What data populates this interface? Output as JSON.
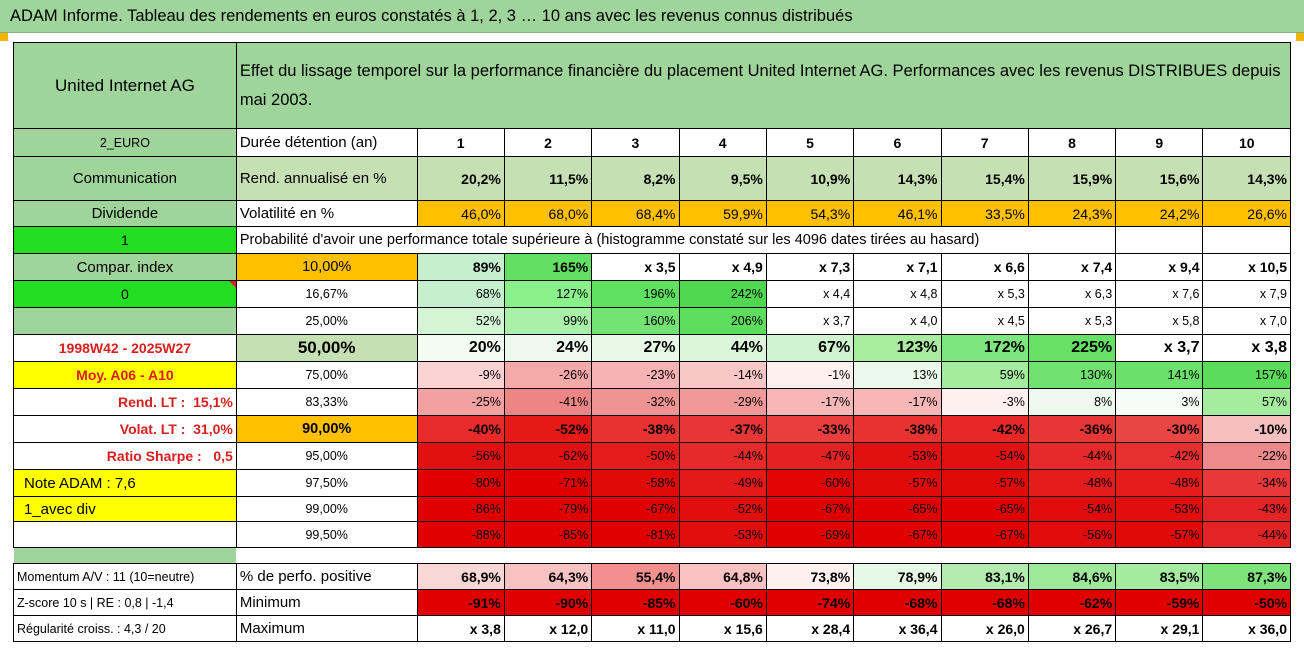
{
  "title": "ADAM Informe. Tableau des rendements en euros constatés à 1, 2, 3 … 10 ans avec les revenus connus distribués",
  "company": "United Internet AG",
  "description": "Effet du lissage temporel sur la performance financière du placement United Internet AG. Performances avec les revenus DISTRIBUES depuis mai 2003.",
  "years_label": "Durée détention (an)",
  "years": [
    "1",
    "2",
    "3",
    "4",
    "5",
    "6",
    "7",
    "8",
    "9",
    "10"
  ],
  "left_labels": {
    "currency": "2_EURO",
    "sector": "Communication",
    "dividend": "Dividende",
    "one": "1",
    "compar_index": "Compar. index",
    "zero": "0",
    "period": "1998W42 - 2025W27",
    "moy": "Moy. A06 - A10",
    "rend_lt": "Rend. LT :",
    "rend_lt_val": "15,1%",
    "volat_lt": "Volat. LT :",
    "volat_lt_val": "31,0%",
    "sharpe": "Ratio Sharpe :",
    "sharpe_val": "0,5",
    "note": "Note ADAM : 7,6",
    "avec_div": "1_avec div"
  },
  "rend": {
    "label": "Rend. annualisé en %",
    "values": [
      "20,2%",
      "11,5%",
      "8,2%",
      "9,5%",
      "10,9%",
      "14,3%",
      "15,4%",
      "15,9%",
      "15,6%",
      "14,3%"
    ]
  },
  "vol": {
    "label": "Volatilité en %",
    "values": [
      "46,0%",
      "68,0%",
      "68,4%",
      "59,9%",
      "54,3%",
      "46,1%",
      "33,5%",
      "24,3%",
      "24,2%",
      "26,6%"
    ]
  },
  "proba_title": "Probabilité d'avoir une performance totale supérieure à (histogramme constaté sur les 4096 dates tirées au hasard)",
  "proba_rows": [
    {
      "pct": "10,00%",
      "values": [
        "89%",
        "165%",
        "x 3,5",
        "x 4,9",
        "x 7,3",
        "x 7,1",
        "x 6,6",
        "x 7,4",
        "x 9,4",
        "x 10,5"
      ]
    },
    {
      "pct": "16,67%",
      "values": [
        "68%",
        "127%",
        "196%",
        "242%",
        "x 4,4",
        "x 4,8",
        "x 5,3",
        "x 6,3",
        "x 7,6",
        "x 7,9"
      ]
    },
    {
      "pct": "25,00%",
      "values": [
        "52%",
        "99%",
        "160%",
        "206%",
        "x 3,7",
        "x 4,0",
        "x 4,5",
        "x 5,3",
        "x 5,8",
        "x 7,0"
      ]
    },
    {
      "pct": "50,00%",
      "values": [
        "20%",
        "24%",
        "27%",
        "44%",
        "67%",
        "123%",
        "172%",
        "225%",
        "x 3,7",
        "x 3,8"
      ]
    },
    {
      "pct": "75,00%",
      "values": [
        "-9%",
        "-26%",
        "-23%",
        "-14%",
        "-1%",
        "13%",
        "59%",
        "130%",
        "141%",
        "157%"
      ]
    },
    {
      "pct": "83,33%",
      "values": [
        "-25%",
        "-41%",
        "-32%",
        "-29%",
        "-17%",
        "-17%",
        "-3%",
        "8%",
        "3%",
        "57%"
      ]
    },
    {
      "pct": "90,00%",
      "values": [
        "-40%",
        "-52%",
        "-38%",
        "-37%",
        "-33%",
        "-38%",
        "-42%",
        "-36%",
        "-30%",
        "-10%"
      ]
    },
    {
      "pct": "95,00%",
      "values": [
        "-56%",
        "-62%",
        "-50%",
        "-44%",
        "-47%",
        "-53%",
        "-54%",
        "-44%",
        "-42%",
        "-22%"
      ]
    },
    {
      "pct": "97,50%",
      "values": [
        "-80%",
        "-71%",
        "-58%",
        "-49%",
        "-60%",
        "-57%",
        "-57%",
        "-48%",
        "-48%",
        "-34%"
      ]
    },
    {
      "pct": "99,00%",
      "values": [
        "-86%",
        "-79%",
        "-67%",
        "-52%",
        "-67%",
        "-65%",
        "-65%",
        "-54%",
        "-53%",
        "-43%"
      ]
    },
    {
      "pct": "99,50%",
      "values": [
        "-88%",
        "-85%",
        "-81%",
        "-53%",
        "-69%",
        "-67%",
        "-67%",
        "-56%",
        "-57%",
        "-44%"
      ]
    }
  ],
  "bottom_rows": [
    {
      "left": "Momentum A/V : 11 (10=neutre)",
      "label": "% de perfo. positive",
      "values": [
        "68,9%",
        "64,3%",
        "55,4%",
        "64,8%",
        "73,8%",
        "78,9%",
        "83,1%",
        "84,6%",
        "83,5%",
        "87,3%"
      ]
    },
    {
      "left": "Z-score 10 s | RE : 0,8 | -1,4",
      "label": "Minimum",
      "values": [
        "-91%",
        "-90%",
        "-85%",
        "-60%",
        "-74%",
        "-68%",
        "-68%",
        "-62%",
        "-59%",
        "-50%"
      ]
    },
    {
      "left": "Régularité croiss. : 4,3 / 20",
      "label": "Maximum",
      "values": [
        "x 3,8",
        "x 12,0",
        "x 11,0",
        "x 15,6",
        "x 28,4",
        "x 36,4",
        "x 26,0",
        "x 26,7",
        "x 29,1",
        "x 36,0"
      ]
    }
  ],
  "colors": {
    "header_green": "#9fd59a",
    "light_green": "#c6e0b4",
    "orange": "#ffc000",
    "yellow": "#ffff00",
    "bright_green": "#22dd22",
    "label_red": "#d91e1e"
  },
  "cell_colors": {
    "proba": [
      [
        "#c6efce",
        "#63e063",
        "#ffffff",
        "#ffffff",
        "#ffffff",
        "#ffffff",
        "#ffffff",
        "#ffffff",
        "#ffffff",
        "#ffffff"
      ],
      [
        "#c6efce",
        "#8af08a",
        "#5fe05f",
        "#4fd84f",
        "#ffffff",
        "#ffffff",
        "#ffffff",
        "#ffffff",
        "#ffffff",
        "#ffffff"
      ],
      [
        "#d4f5d4",
        "#a9f0a9",
        "#72e272",
        "#5ddc5d",
        "#ffffff",
        "#ffffff",
        "#ffffff",
        "#ffffff",
        "#ffffff",
        "#ffffff"
      ],
      [
        "#f2fdf2",
        "#eefaee",
        "#e8f9e8",
        "#dcf6dc",
        "#cff3cf",
        "#a9ec9f",
        "#7ee67e",
        "#66e166",
        "#ffffff",
        "#ffffff"
      ],
      [
        "#fbd3d3",
        "#f6a9a9",
        "#f7b3b3",
        "#fac7c7",
        "#fff0f0",
        "#ecfaec",
        "#a6ec9f",
        "#71e271",
        "#6be06b",
        "#5bdc5b"
      ],
      [
        "#f2a0a0",
        "#ee8585",
        "#f09393",
        "#f19999",
        "#f7b7b7",
        "#f7b7b7",
        "#fff0f0",
        "#eefaee",
        "#f6fdf6",
        "#a6ec9f"
      ],
      [
        "#e82a2a",
        "#e61919",
        "#e83131",
        "#e83535",
        "#ea3e3e",
        "#e83131",
        "#e82727",
        "#e83535",
        "#ea4545",
        "#f6c0c0"
      ],
      [
        "#e21111",
        "#e21111",
        "#e41b1b",
        "#e62a2a",
        "#e42222",
        "#e21111",
        "#e21111",
        "#e62a2a",
        "#e62f2f",
        "#f08a8a"
      ],
      [
        "#e00000",
        "#e00000",
        "#e20909",
        "#e41919",
        "#e20505",
        "#e20909",
        "#e20909",
        "#e41c1c",
        "#e41c1c",
        "#e83838"
      ],
      [
        "#e00000",
        "#e00000",
        "#e00000",
        "#e20d0d",
        "#e00000",
        "#e00000",
        "#e00000",
        "#e20b0b",
        "#e20d0d",
        "#e42424"
      ],
      [
        "#e00000",
        "#e00000",
        "#e00000",
        "#e20d0d",
        "#e00000",
        "#e00000",
        "#e00000",
        "#e20b0b",
        "#e20909",
        "#e42424"
      ]
    ],
    "bottom": [
      [
        "#fad7d7",
        "#f8c2c2",
        "#f29090",
        "#f8c2c2",
        "#fff0f0",
        "#e6f8e6",
        "#b4ecb0",
        "#9ee89a",
        "#a4ea9f",
        "#7ee37a"
      ],
      [
        "#e00000",
        "#e00000",
        "#e00000",
        "#e00000",
        "#e00000",
        "#e00000",
        "#e00000",
        "#e00000",
        "#e00000",
        "#e00000"
      ],
      [
        "#ffffff",
        "#ffffff",
        "#ffffff",
        "#ffffff",
        "#ffffff",
        "#ffffff",
        "#ffffff",
        "#ffffff",
        "#ffffff",
        "#ffffff"
      ]
    ]
  }
}
